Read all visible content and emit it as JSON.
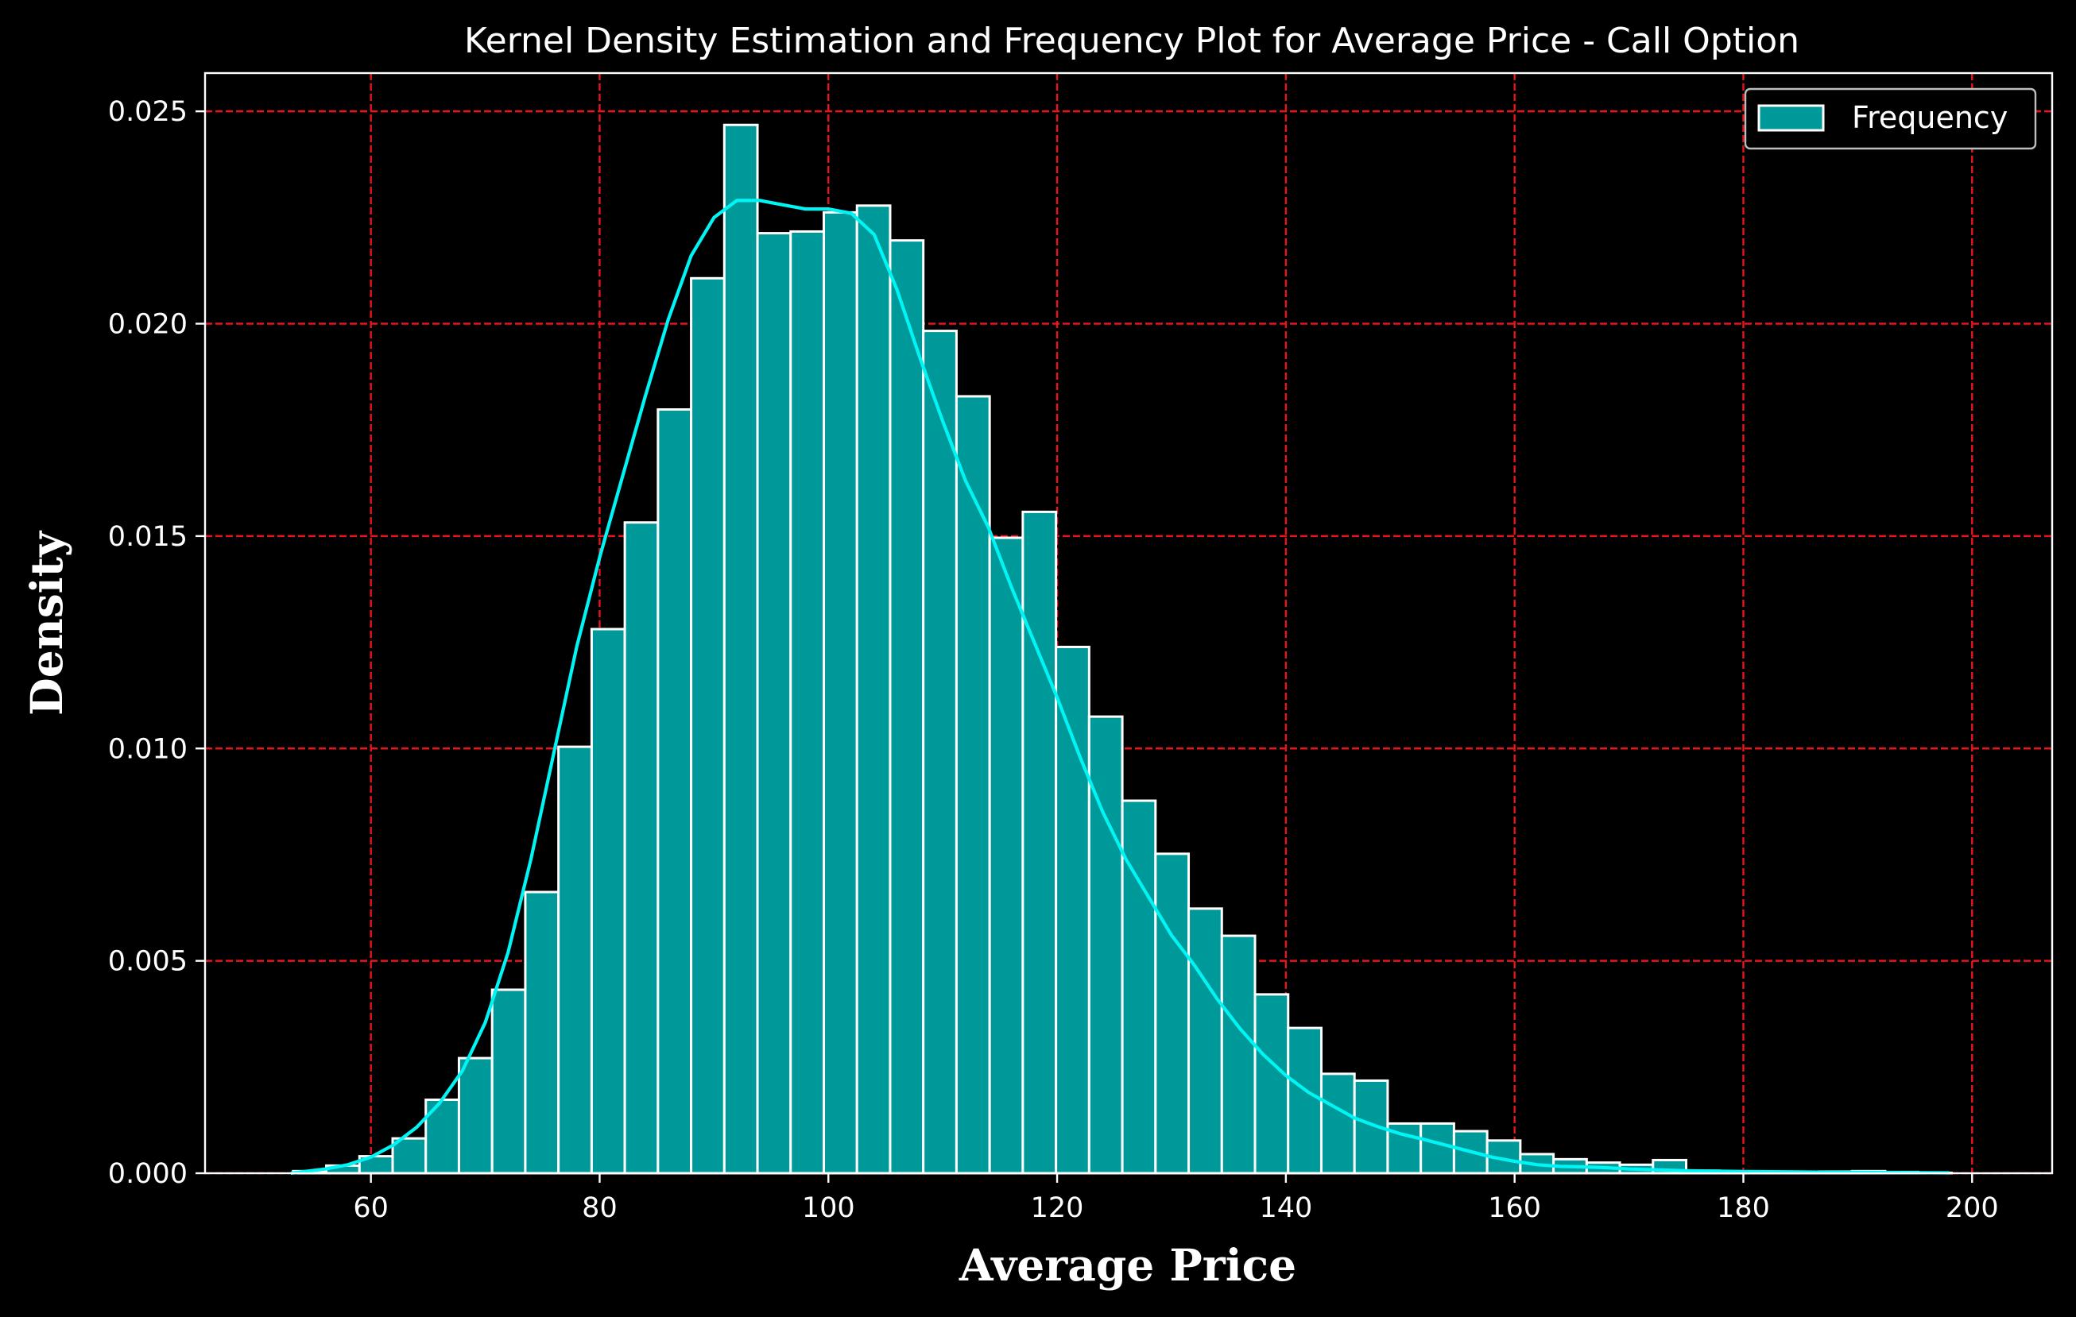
{
  "chart_data": {
    "type": "bar",
    "subtype": "histogram-with-kde",
    "title": "Kernel Density Estimation and Frequency Plot for Average Price - Call Option",
    "xlabel": "Average Price",
    "ylabel": "Density",
    "xlim": [
      45.5,
      207
    ],
    "ylim": [
      0,
      0.0259
    ],
    "xticks": [
      60,
      80,
      100,
      120,
      140,
      160,
      180,
      200
    ],
    "xtick_labels": [
      "60",
      "80",
      "100",
      "120",
      "140",
      "160",
      "180",
      "200"
    ],
    "yticks": [
      0.0,
      0.005,
      0.01,
      0.015,
      0.02,
      0.025
    ],
    "ytick_labels": [
      "0.000",
      "0.005",
      "0.010",
      "0.015",
      "0.020",
      "0.025"
    ],
    "grid": true,
    "grid_color": "#e8141c",
    "bar_color": "#009999",
    "bar_edge_color": "#ffffff",
    "kde_color": "#00f5f5",
    "background": "#000000",
    "legend": {
      "position": "top-right",
      "entries": [
        "Frequency"
      ]
    },
    "histogram": {
      "bin_start": 53.2,
      "bin_width": 2.9,
      "densities": [
        5e-05,
        0.00018,
        0.0004,
        0.00082,
        0.00173,
        0.00271,
        0.00432,
        0.00662,
        0.01004,
        0.01281,
        0.01532,
        0.01798,
        0.02107,
        0.02468,
        0.02213,
        0.02217,
        0.02262,
        0.02278,
        0.02196,
        0.01983,
        0.01829,
        0.01496,
        0.01557,
        0.01239,
        0.01075,
        0.00877,
        0.00752,
        0.00623,
        0.00559,
        0.00421,
        0.00342,
        0.00234,
        0.00218,
        0.00117,
        0.00117,
        0.00099,
        0.00077,
        0.00045,
        0.00033,
        0.00025,
        0.0002,
        0.00031,
        6e-05,
        4e-05,
        1e-05,
        2e-05,
        4e-05,
        5e-05,
        3e-05,
        1e-05
      ]
    },
    "kde": {
      "x": [
        53,
        56,
        58,
        60,
        62,
        64,
        66,
        68,
        70,
        72,
        74,
        76,
        78,
        80,
        82,
        84,
        86,
        88,
        90,
        92,
        94,
        96,
        98,
        100,
        102,
        104,
        106,
        108,
        110,
        112,
        114,
        116,
        118,
        120,
        122,
        124,
        126,
        128,
        130,
        132,
        134,
        136,
        138,
        140,
        142,
        144,
        146,
        148,
        150,
        152,
        154,
        156,
        158,
        160,
        162,
        164,
        166,
        168,
        170,
        175,
        180,
        185,
        190,
        198
      ],
      "y": [
        0.0,
        0.0001,
        0.0002,
        0.00038,
        0.00067,
        0.00108,
        0.00165,
        0.00241,
        0.00355,
        0.0052,
        0.0074,
        0.0099,
        0.0124,
        0.0145,
        0.0164,
        0.0183,
        0.0201,
        0.0216,
        0.0225,
        0.0229,
        0.0229,
        0.0228,
        0.0227,
        0.0227,
        0.0226,
        0.0221,
        0.0208,
        0.0192,
        0.0177,
        0.0163,
        0.0152,
        0.0138,
        0.0125,
        0.0112,
        0.0098,
        0.0085,
        0.0074,
        0.0065,
        0.0056,
        0.0049,
        0.0041,
        0.0034,
        0.0028,
        0.0023,
        0.0019,
        0.0016,
        0.0013,
        0.0011,
        0.00093,
        0.0008,
        0.00066,
        0.00052,
        0.00038,
        0.00028,
        0.0002,
        0.00016,
        0.00015,
        0.00013,
        0.0001,
        6e-05,
        4e-05,
        3e-05,
        2e-05,
        1e-05
      ]
    }
  }
}
